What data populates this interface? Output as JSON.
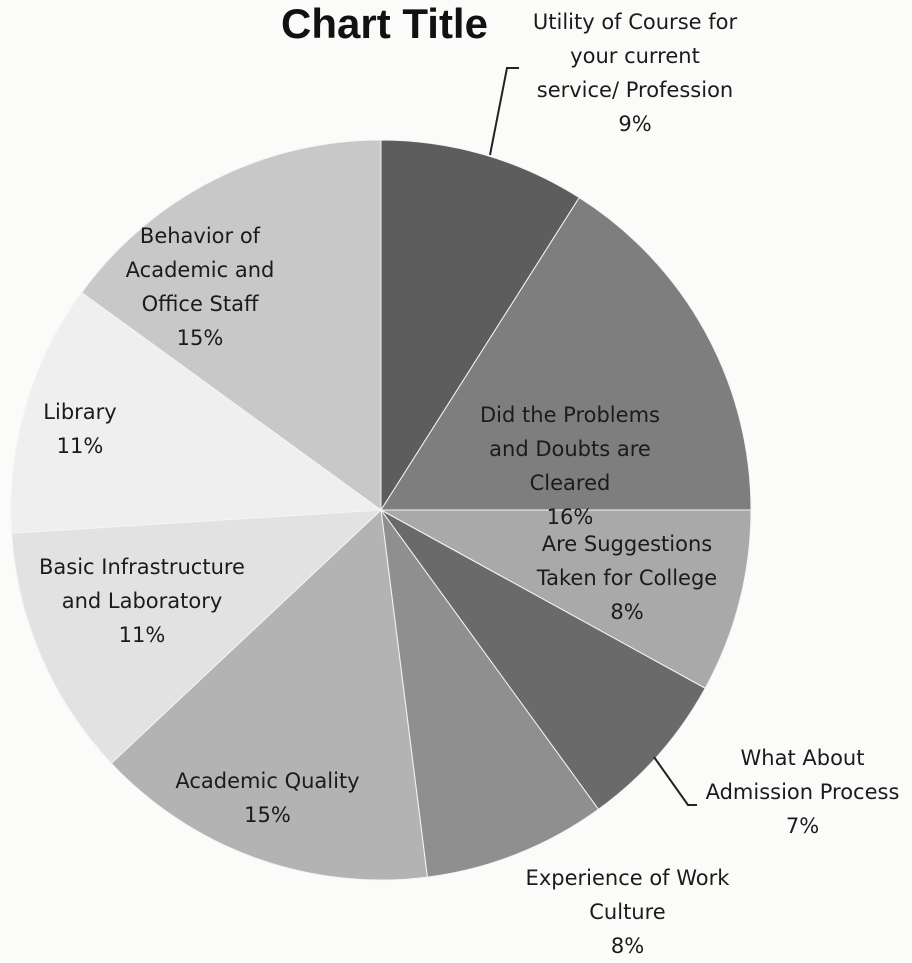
{
  "chart_data": {
    "type": "pie",
    "title": "Chart Title",
    "slices": [
      {
        "label": "Utility of Course for your current service/ Profession",
        "lines": [
          "Utility of Course for",
          "your current",
          "service/ Profession"
        ],
        "pct": "9%",
        "value": 9,
        "color": "#5d5d5d"
      },
      {
        "label": "Did the Problems and Doubts are Cleared",
        "lines": [
          "Did the Problems",
          "and Doubts are",
          "Cleared"
        ],
        "pct": "16%",
        "value": 16,
        "color": "#7e7e7e"
      },
      {
        "label": "Are Suggestions Taken for College",
        "lines": [
          "Are Suggestions",
          "Taken for College"
        ],
        "pct": "8%",
        "value": 8,
        "color": "#a9a9a9"
      },
      {
        "label": "What About Admission Process",
        "lines": [
          "What About",
          "Admission Process"
        ],
        "pct": "7%",
        "value": 7,
        "color": "#6a6a6a"
      },
      {
        "label": "Experience of Work Culture",
        "lines": [
          "Experience of Work",
          "Culture"
        ],
        "pct": "8%",
        "value": 8,
        "color": "#8f8f8f"
      },
      {
        "label": "Academic Quality",
        "lines": [
          "Academic Quality"
        ],
        "pct": "15%",
        "value": 15,
        "color": "#b3b3b3"
      },
      {
        "label": "Basic Infrastructure and Laboratory",
        "lines": [
          "Basic Infrastructure",
          "and Laboratory"
        ],
        "pct": "11%",
        "value": 11,
        "color": "#e2e2e2"
      },
      {
        "label": "Library",
        "lines": [
          "Library"
        ],
        "pct": "11%",
        "value": 11,
        "color": "#efefef"
      },
      {
        "label": "Behavior of Academic and Office Staff",
        "lines": [
          "Behavior of",
          "Academic and",
          "Office Staff"
        ],
        "pct": "15%",
        "value": 15,
        "color": "#c8c8c8"
      }
    ],
    "legend": "none"
  }
}
